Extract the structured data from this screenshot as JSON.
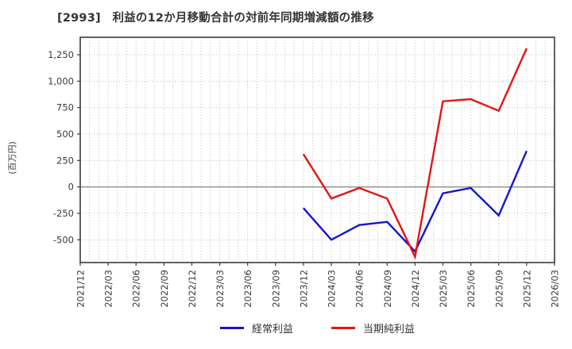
{
  "title": "[2993]　利益の12か月移動合計の対前年同期増減額の推移",
  "chart_data": {
    "type": "line",
    "title": "[2993] 利益の12か月移動合計の対前年同期増減額の推移",
    "xlabel": "",
    "ylabel": "(百万円)",
    "grid": true,
    "legend_position": "bottom",
    "ylim": [
      -715,
      1415
    ],
    "categories": [
      "2021/12",
      "2022/03",
      "2022/06",
      "2022/09",
      "2022/12",
      "2023/03",
      "2023/06",
      "2023/09",
      "2023/12",
      "2024/03",
      "2024/06",
      "2024/09",
      "2024/12",
      "2025/03",
      "2025/06",
      "2025/09",
      "2025/12",
      "2026/03"
    ],
    "yticks": [
      {
        "v": 1250,
        "label": "1,250"
      },
      {
        "v": 1000,
        "label": "1,000"
      },
      {
        "v": 750,
        "label": "750"
      },
      {
        "v": 500,
        "label": "500"
      },
      {
        "v": 250,
        "label": "250"
      },
      {
        "v": 0,
        "label": "0"
      },
      {
        "v": -250,
        "label": "-250"
      },
      {
        "v": -500,
        "label": "-500"
      }
    ],
    "series": [
      {
        "name": "経常利益",
        "key": "ordinary-profit",
        "color": "#1414d2",
        "values": [
          null,
          null,
          null,
          null,
          null,
          null,
          null,
          null,
          -200,
          -500,
          -360,
          -330,
          -610,
          -60,
          -10,
          -270,
          340,
          null
        ]
      },
      {
        "name": "当期純利益",
        "key": "net-profit",
        "color": "#e41414",
        "values": [
          null,
          null,
          null,
          null,
          null,
          null,
          null,
          null,
          310,
          -110,
          -10,
          -110,
          -660,
          810,
          830,
          720,
          1310,
          null
        ]
      }
    ]
  }
}
